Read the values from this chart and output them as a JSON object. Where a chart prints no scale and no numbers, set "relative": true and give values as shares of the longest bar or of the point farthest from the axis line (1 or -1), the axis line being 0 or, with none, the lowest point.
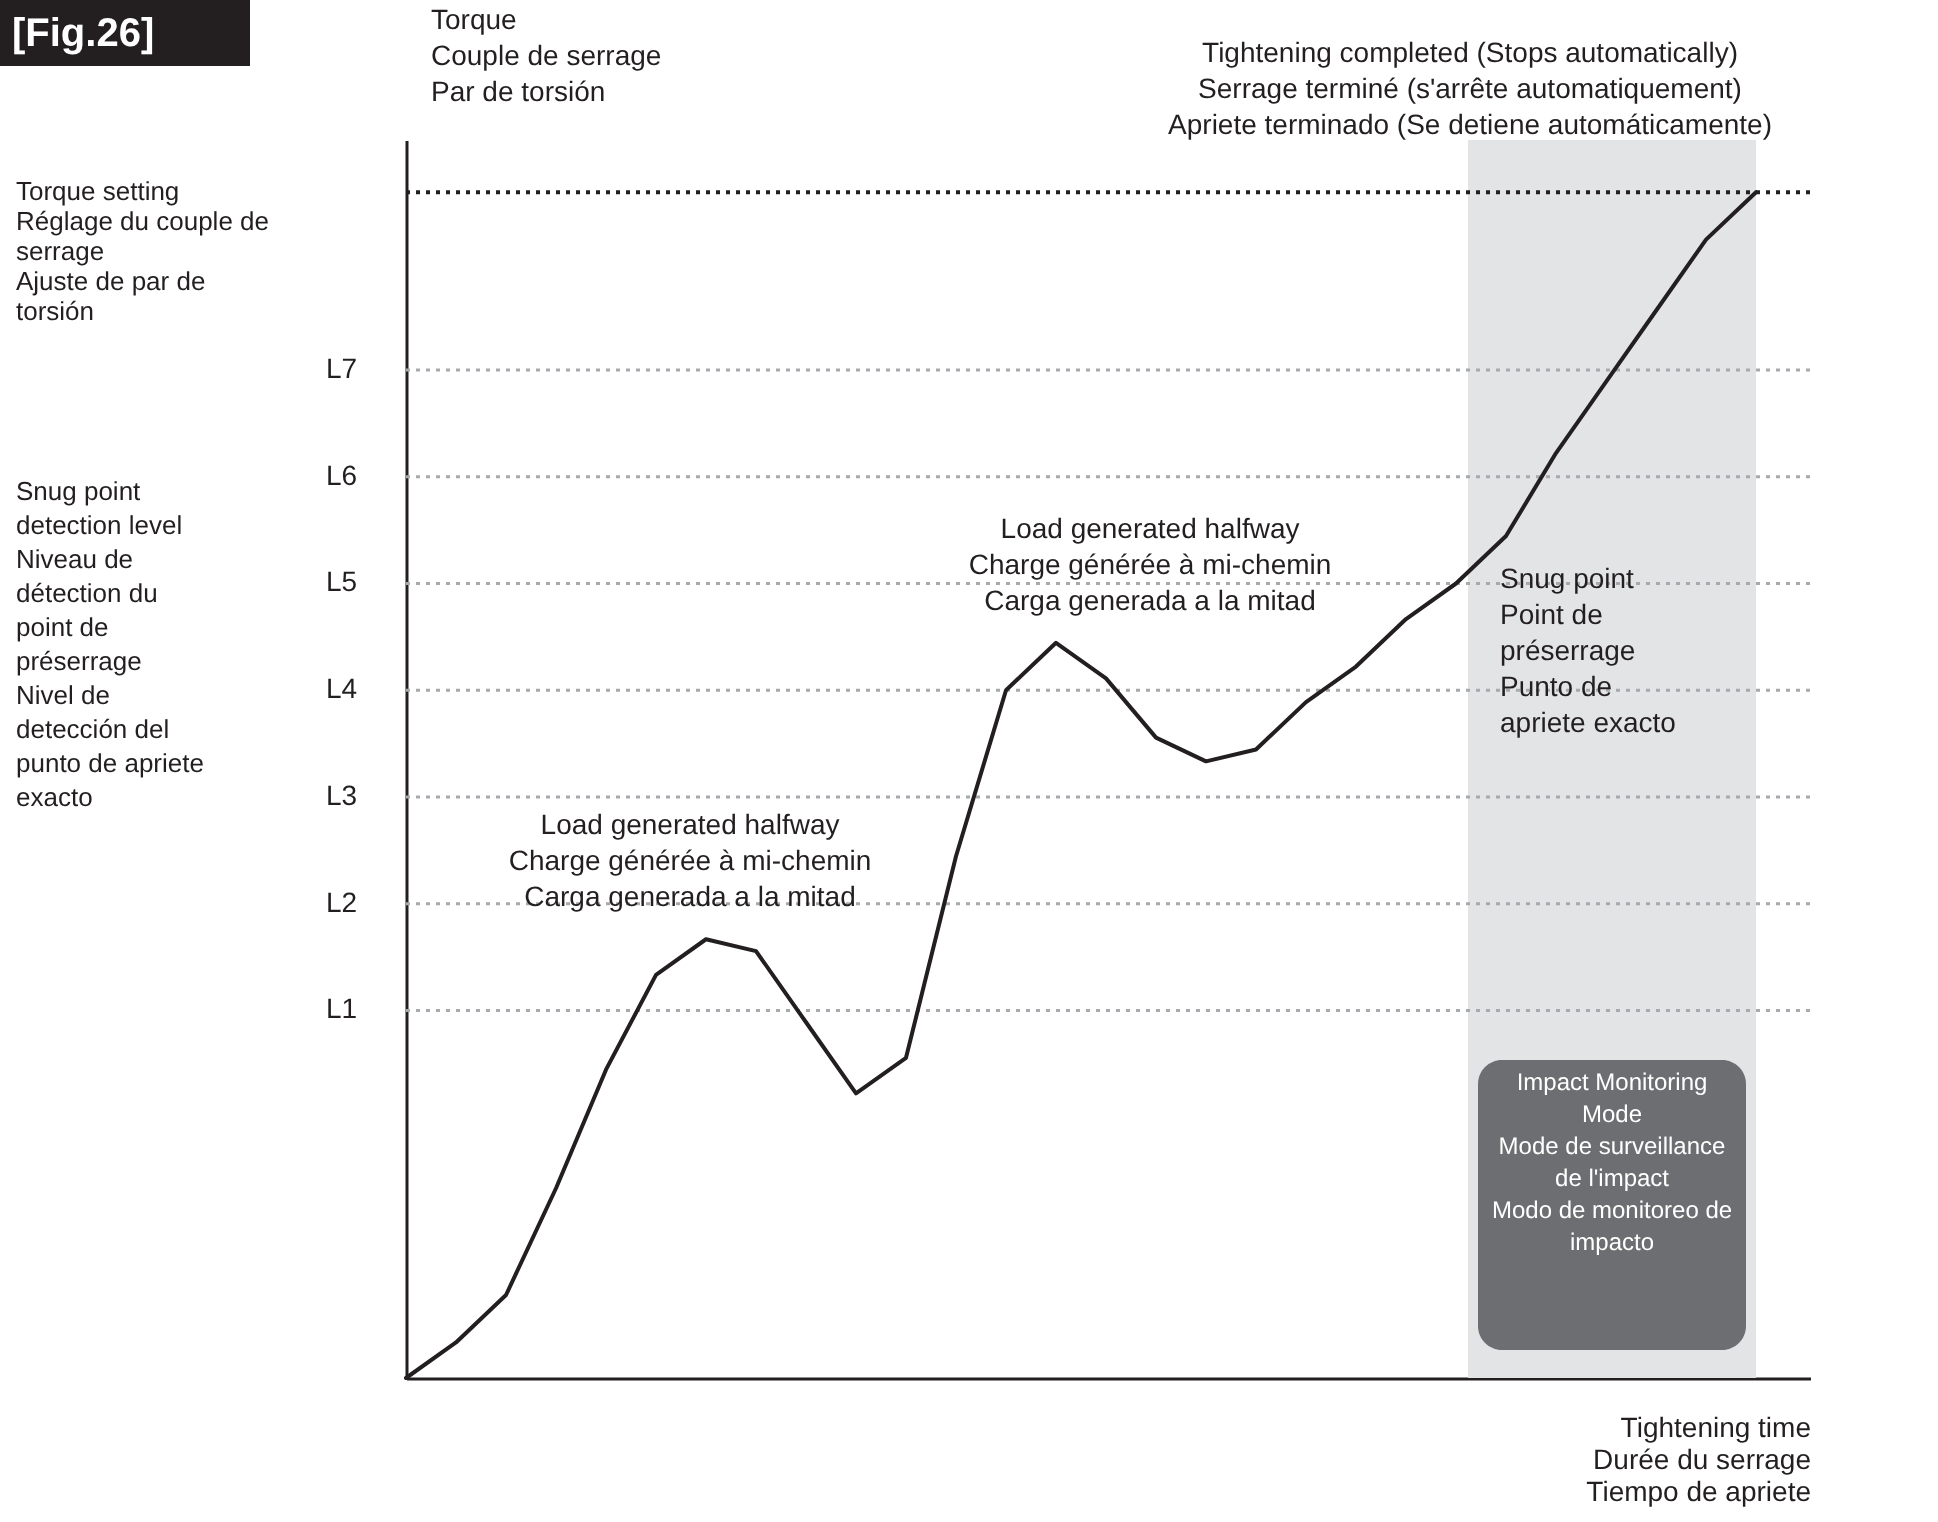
{
  "chart_data": {
    "type": "line",
    "title": "[Fig.26]",
    "ylabel": "Torque\nCouple de serrage\nPar de torsión",
    "xlabel": "Tightening time\nDurée du serrage\nTiempo de apriete",
    "relative": true,
    "categories": [
      null,
      null,
      null,
      null,
      null,
      null,
      null,
      null,
      null,
      null,
      null,
      null,
      null,
      null,
      null,
      null,
      null,
      null,
      null,
      null,
      null,
      null,
      null,
      null,
      null,
      null,
      null,
      null
    ],
    "series": [
      {
        "color": "#231f20",
        "values": [
          0,
          0.03,
          0.07,
          0.16,
          0.26,
          0.34,
          0.37,
          0.36,
          0.3,
          0.24,
          0.27,
          0.44,
          0.58,
          0.62,
          0.59,
          0.54,
          0.52,
          0.53,
          0.57,
          0.6,
          0.64,
          0.67,
          0.71,
          0.78,
          0.84,
          0.9,
          0.96,
          1
        ]
      }
    ],
    "ref_lines": [
      {
        "axis": "y",
        "value": 1,
        "label": "Torque setting\nRéglage du couple de serrage\nAjuste de par de torsión",
        "color": "#231f20",
        "line_style": "dotted"
      },
      {
        "axis": "y",
        "value": 0.85,
        "label": "L7",
        "color": "#a7a9ac",
        "line_style": "dotted"
      },
      {
        "axis": "y",
        "value": 0.76,
        "label": "L6",
        "color": "#a7a9ac",
        "line_style": "dotted"
      },
      {
        "axis": "y",
        "value": 0.67,
        "label": "L5",
        "color": "#a7a9ac",
        "line_style": "dotted"
      },
      {
        "axis": "y",
        "value": 0.58,
        "label": "L4",
        "color": "#a7a9ac",
        "line_style": "dotted"
      },
      {
        "axis": "y",
        "value": 0.49,
        "label": "L3",
        "color": "#a7a9ac",
        "line_style": "dotted"
      },
      {
        "axis": "y",
        "value": 0.4,
        "label": "L2",
        "color": "#a7a9ac",
        "line_style": "dotted"
      },
      {
        "axis": "y",
        "value": 0.31,
        "label": "L1",
        "color": "#a7a9ac",
        "line_style": "dotted"
      }
    ],
    "annotations": [
      "Snug point detection level\nNiveau de détection du point de préserrage\nNivel de detección del punto de apriete exacto",
      "Tightening completed (Stops automatically)\nSerrage terminé (s'arrête automatiquement)\nApriete terminado (Se detiene automáticamente)",
      "Load generated halfway\nCharge générée à mi-chemin\nCarga generada a la mitad",
      "Load generated halfway\nCharge générée à mi-chemin\nCarga generada a la mitad",
      "Snug point\nPoint de préserrage\nPunto de apriete exacto",
      "Impact Monitoring Mode\nMode de surveillance de l'impact\nModo de monitoreo de impacto"
    ]
  }
}
